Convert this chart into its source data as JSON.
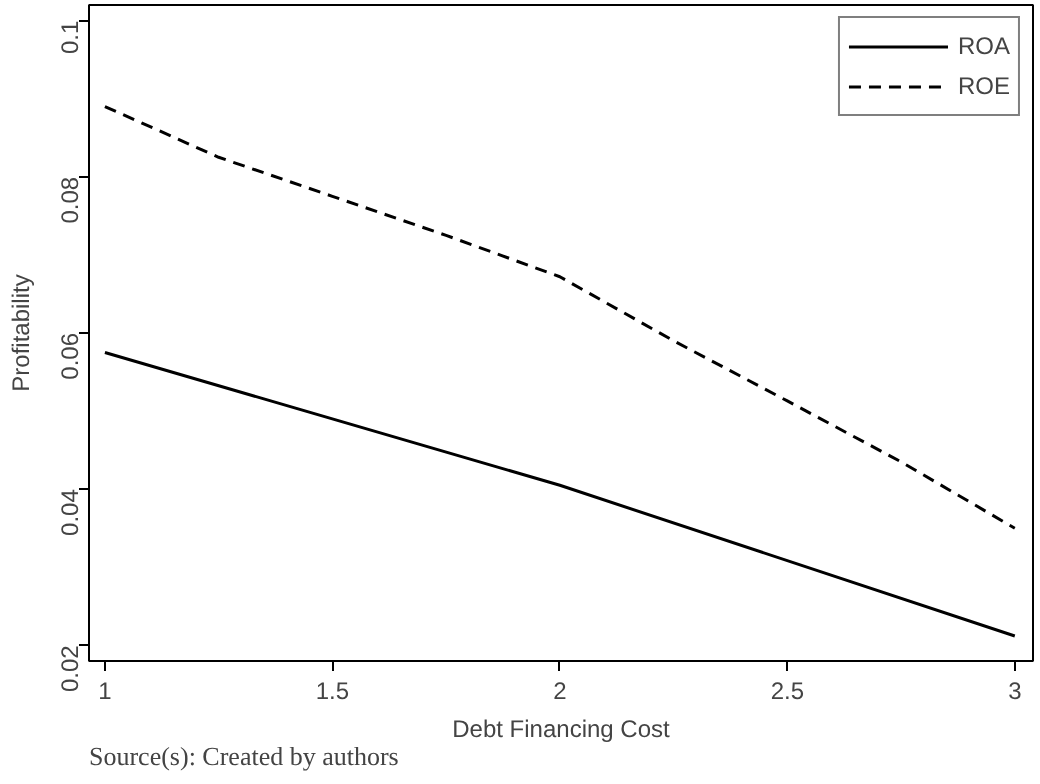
{
  "chart_data": {
    "type": "line",
    "xlabel": "Debt Financing Cost",
    "ylabel": "Profitability",
    "annotations": [
      "Source(s): Created by authors"
    ],
    "series": [
      {
        "name": "ROA",
        "color": "#000000",
        "line_style": "solid",
        "x": [
          1,
          2,
          3
        ],
        "values": [
          0.0575,
          0.0405,
          0.0212
        ]
      },
      {
        "name": "ROE",
        "color": "#000000",
        "line_style": "dashed",
        "x": [
          1,
          1.25,
          1.5,
          1.75,
          2,
          2.25,
          2.5,
          2.75,
          3
        ],
        "values": [
          0.089,
          0.0825,
          0.0775,
          0.0725,
          0.0672,
          0.059,
          0.0513,
          0.0435,
          0.035
        ]
      }
    ],
    "xlim": [
      0.965,
      3.04
    ],
    "ylim": [
      0.018,
      0.102
    ],
    "xticks": [
      1,
      1.5,
      2,
      2.5,
      3
    ],
    "yticks": [
      0.02,
      0.04,
      0.06,
      0.08,
      0.1
    ],
    "grid": false,
    "legend": "top right",
    "marker": "none"
  }
}
